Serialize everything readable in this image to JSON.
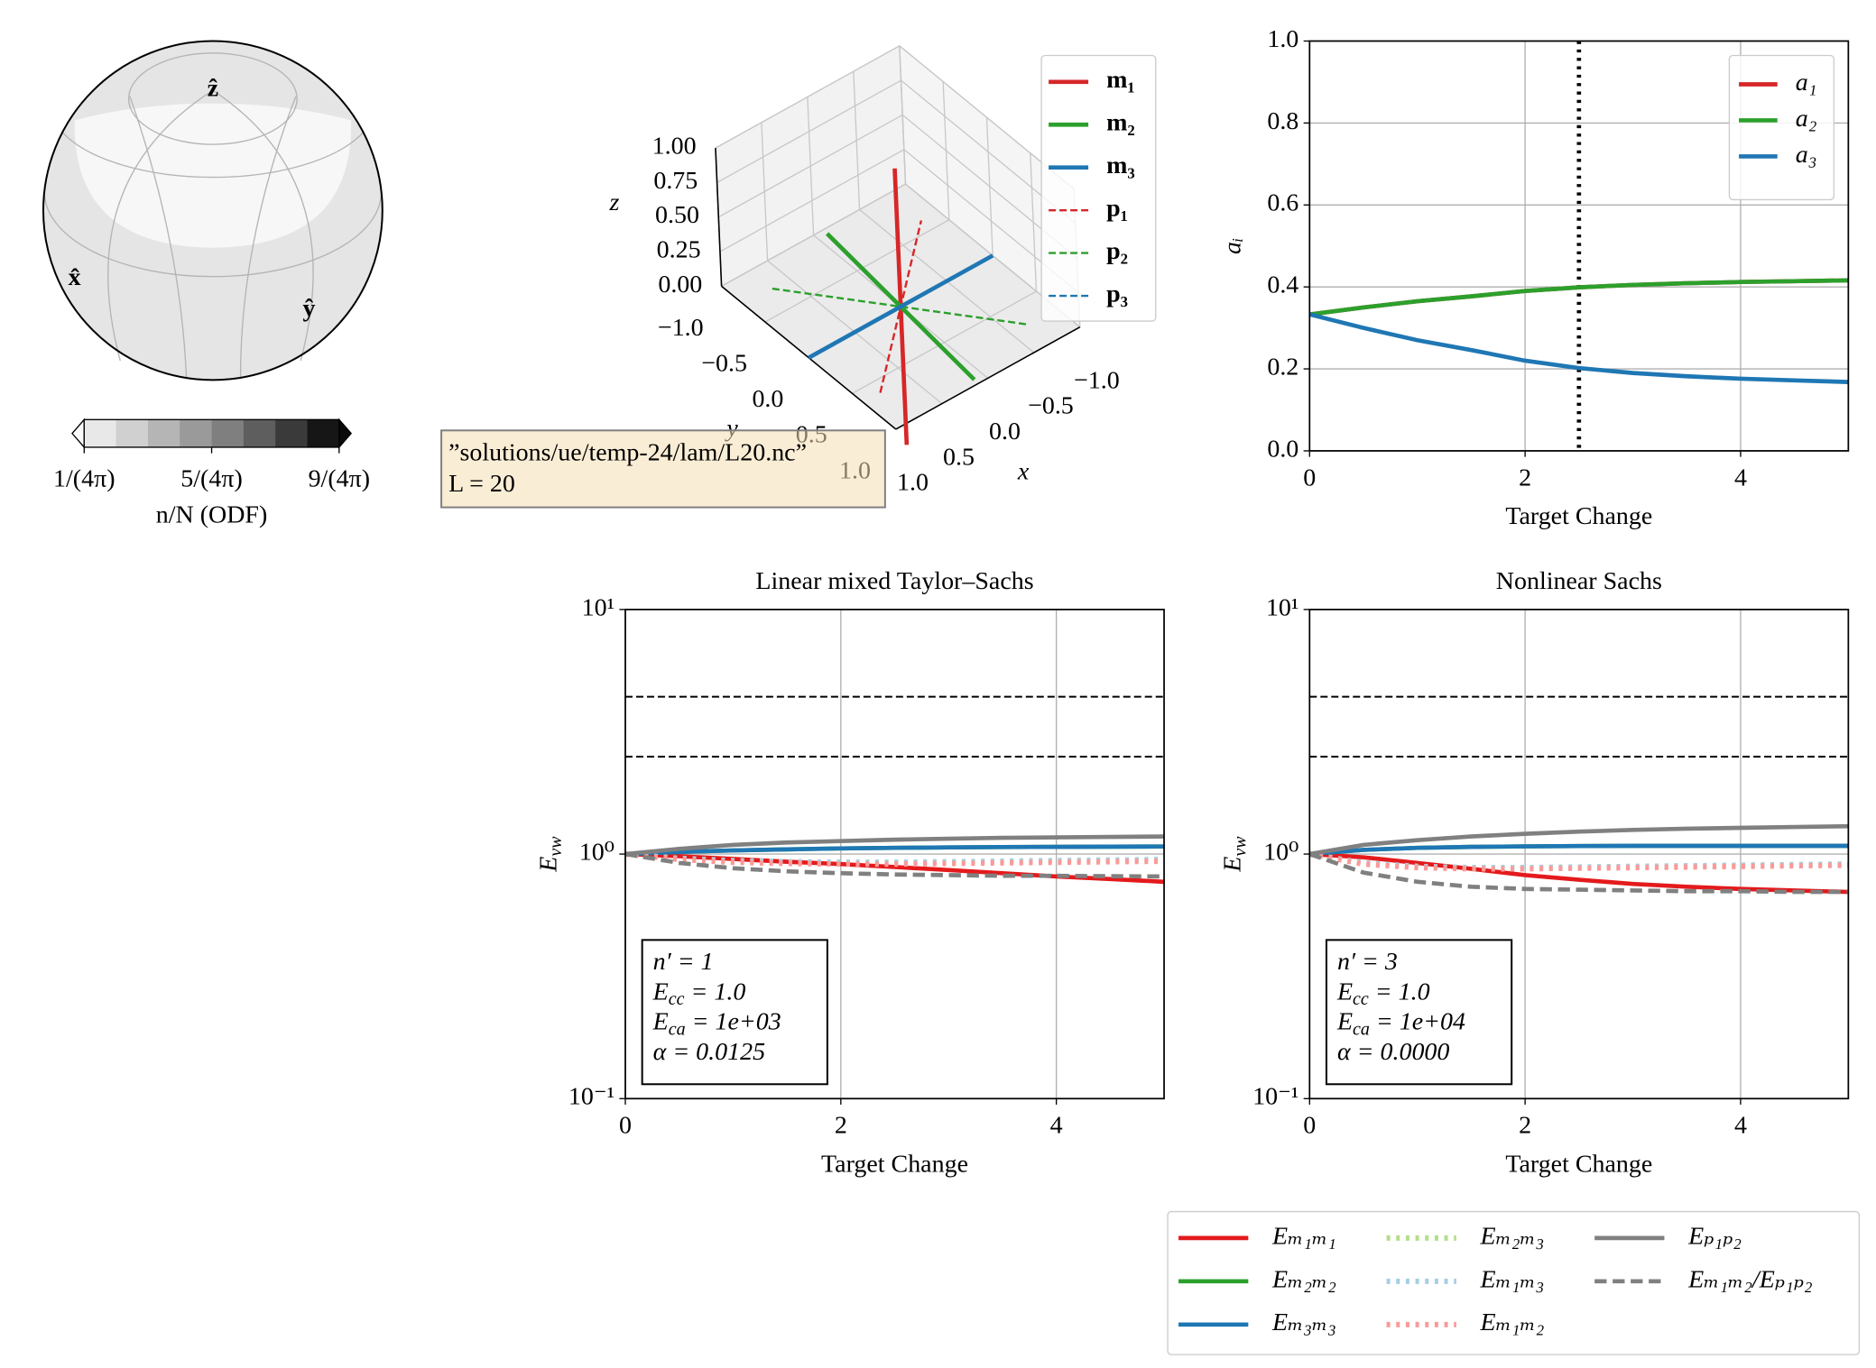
{
  "annotation": [
    "”solutions/ue/temp-24/lam/L20.nc”",
    "L = 20"
  ],
  "chart_data": [
    {
      "type": "sphere",
      "axis_labels": [
        "x̂",
        "ŷ",
        "ẑ"
      ],
      "axis_label_color": "#a01818",
      "colorbar": {
        "label": "n/N (ODF)",
        "lim": [
          0.0796,
          0.7162
        ],
        "ticks": [
          {
            "value": 0.0796,
            "label": "1/(4π)"
          },
          {
            "value": 0.3979,
            "label": "5/(4π)"
          },
          {
            "value": 0.7162,
            "label": "9/(4π)"
          }
        ],
        "colors": [
          "#e8e8e8",
          "#d0d0d0",
          "#b5b5b5",
          "#9a9a9a",
          "#7f7f7f",
          "#5e5e5e",
          "#3a3a3a",
          "#161616"
        ],
        "extend_colors": [
          "#fafafa",
          "#0a0a0a"
        ]
      }
    },
    {
      "type": "line3d",
      "xlabel": "x",
      "ylabel": "y",
      "zlabel": "z",
      "xlim": [
        -1,
        1
      ],
      "ylim": [
        -1,
        1
      ],
      "zlim": [
        0,
        1
      ],
      "xticks": [
        {
          "value": -1,
          "label": "−1.0"
        },
        {
          "value": -0.5,
          "label": "−0.5"
        },
        {
          "value": 0,
          "label": "0.0"
        },
        {
          "value": 0.5,
          "label": "0.5"
        },
        {
          "value": 1,
          "label": "1.0"
        }
      ],
      "yticks": [
        {
          "value": -1,
          "label": "−1.0"
        },
        {
          "value": -0.5,
          "label": "−0.5"
        },
        {
          "value": 0,
          "label": "0.0"
        },
        {
          "value": 0.5,
          "label": "0.5"
        },
        {
          "value": 1,
          "label": "1.0"
        }
      ],
      "zticks": [
        {
          "value": 0,
          "label": "0.00"
        },
        {
          "value": 0.25,
          "label": "0.25"
        },
        {
          "value": 0.5,
          "label": "0.50"
        },
        {
          "value": 0.75,
          "label": "0.75"
        },
        {
          "value": 1,
          "label": "1.00"
        }
      ],
      "legend": "upper right",
      "series": [
        {
          "name": "m₁",
          "color": "#d62728",
          "style": "solid",
          "vector": [
            0,
            0,
            1
          ]
        },
        {
          "name": "m₂",
          "color": "#2ca02c",
          "style": "solid",
          "vector": [
            0.1,
            0.95,
            0
          ]
        },
        {
          "name": "m₃",
          "color": "#1f77b4",
          "style": "solid",
          "vector": [
            1,
            0,
            0
          ]
        },
        {
          "name": "p₁",
          "color": "#d62728",
          "style": "dashed",
          "vector": [
            -0.15,
            0.12,
            0.63
          ]
        },
        {
          "name": "p₂",
          "color": "#2ca02c",
          "style": "dashed",
          "vector": [
            -0.69,
            0.745,
            0
          ]
        },
        {
          "name": "p₃",
          "color": "#1f77b4",
          "style": "dashed",
          "vector": [
            1,
            0,
            0
          ]
        }
      ]
    },
    {
      "type": "line",
      "xlabel": "Target Change",
      "ylabel": "aᵢ",
      "grid": true,
      "legend": "upper right",
      "x": [
        0,
        0.5,
        1,
        1.5,
        2,
        2.5,
        3,
        3.5,
        4,
        4.5,
        5
      ],
      "xlim": [
        0,
        5
      ],
      "xticks": [
        0,
        2,
        4
      ],
      "ylim": [
        0,
        1
      ],
      "yticks": [
        {
          "value": 0,
          "label": "0.0"
        },
        {
          "value": 0.2,
          "label": "0.2"
        },
        {
          "value": 0.4,
          "label": "0.4"
        },
        {
          "value": 0.6,
          "label": "0.6"
        },
        {
          "value": 0.8,
          "label": "0.8"
        },
        {
          "value": 1,
          "label": "1.0"
        }
      ],
      "vlines": [
        2.5
      ],
      "series": [
        {
          "name": "a₁",
          "color": "#d62728",
          "style": "solid",
          "values": [
            0.333,
            0.35,
            0.365,
            0.377,
            0.39,
            0.399,
            0.405,
            0.409,
            0.412,
            0.414,
            0.416
          ]
        },
        {
          "name": "a₂",
          "color": "#2ca02c",
          "style": "solid",
          "values": [
            0.333,
            0.35,
            0.365,
            0.377,
            0.39,
            0.399,
            0.405,
            0.409,
            0.412,
            0.414,
            0.416
          ]
        },
        {
          "name": "a₃",
          "color": "#1f77b4",
          "style": "solid",
          "values": [
            0.333,
            0.3,
            0.27,
            0.246,
            0.22,
            0.202,
            0.19,
            0.182,
            0.176,
            0.172,
            0.168
          ]
        }
      ]
    },
    {
      "type": "line",
      "title": "Linear mixed Taylor–Sachs",
      "xlabel": "Target Change",
      "ylabel": "E",
      "ylabel_sub": "vw",
      "yscale": "log",
      "grid": true,
      "x": [
        0,
        0.5,
        1,
        1.5,
        2,
        2.5,
        3,
        3.5,
        4,
        4.5,
        5
      ],
      "xlim": [
        0,
        5
      ],
      "xticks": [
        0,
        2,
        4
      ],
      "ylim": [
        0.1,
        10
      ],
      "yticks": [
        {
          "value": 0.1,
          "label": "10⁻¹"
        },
        {
          "value": 1,
          "label": "10⁰"
        },
        {
          "value": 10,
          "label": "10¹"
        }
      ],
      "hlines": [
        4.4,
        2.5
      ],
      "annotation": [
        [
          {
            "text": "n′ = 1"
          }
        ],
        [
          {
            "text": "E"
          },
          {
            "text": "cc",
            "sub": true
          },
          {
            "text": " = 1.0"
          }
        ],
        [
          {
            "text": "E"
          },
          {
            "text": "ca",
            "sub": true
          },
          {
            "text": " = 1e+03"
          }
        ],
        [
          {
            "text": "α = 0.0125"
          }
        ]
      ],
      "series": [
        {
          "name": "Eₘ₁ₘ₁",
          "color": "#e41a1c",
          "style": "solid",
          "values": [
            1,
            0.98,
            0.955,
            0.93,
            0.91,
            0.885,
            0.86,
            0.835,
            0.81,
            0.79,
            0.77
          ]
        },
        {
          "name": "Eₘ₂ₘ₂",
          "color": "#2ca02c",
          "style": "solid",
          "values": [
            1,
            1.02,
            1.035,
            1.045,
            1.055,
            1.06,
            1.065,
            1.068,
            1.07,
            1.072,
            1.074
          ]
        },
        {
          "name": "Eₘ₃ₘ₃",
          "color": "#1f77b4",
          "style": "solid",
          "values": [
            1,
            1.02,
            1.035,
            1.045,
            1.055,
            1.06,
            1.065,
            1.068,
            1.07,
            1.072,
            1.074
          ]
        },
        {
          "name": "Eₘ₂ₘ₃",
          "color": "#b2df8a",
          "style": "dotted",
          "values": [
            1,
            0.96,
            0.94,
            0.93,
            0.925,
            0.925,
            0.93,
            0.935,
            0.94,
            0.945,
            0.95
          ]
        },
        {
          "name": "Eₘ₁ₘ₃",
          "color": "#a6cee3",
          "style": "dotted",
          "values": [
            1,
            0.96,
            0.94,
            0.93,
            0.925,
            0.925,
            0.93,
            0.935,
            0.94,
            0.945,
            0.95
          ]
        },
        {
          "name": "Eₘ₁ₘ₂",
          "color": "#fb9a99",
          "style": "dotted",
          "values": [
            1,
            0.95,
            0.925,
            0.915,
            0.91,
            0.91,
            0.915,
            0.92,
            0.925,
            0.93,
            0.935
          ]
        },
        {
          "name": "Eₚ₁ₚ₂",
          "color": "#808080",
          "style": "solid",
          "values": [
            1,
            1.05,
            1.09,
            1.115,
            1.13,
            1.145,
            1.155,
            1.165,
            1.17,
            1.175,
            1.18
          ]
        },
        {
          "name": "Eₘ₁ₘ₂/Eₚ₁ₚ₂",
          "color": "#808080",
          "style": "dashed",
          "values": [
            1,
            0.92,
            0.875,
            0.85,
            0.835,
            0.825,
            0.82,
            0.815,
            0.815,
            0.812,
            0.81
          ]
        }
      ]
    },
    {
      "type": "line",
      "title": "Nonlinear Sachs",
      "xlabel": "Target Change",
      "ylabel": "E",
      "ylabel_sub": "vw",
      "yscale": "log",
      "grid": true,
      "x": [
        0,
        0.5,
        1,
        1.5,
        2,
        2.5,
        3,
        3.5,
        4,
        4.5,
        5
      ],
      "xlim": [
        0,
        5
      ],
      "xticks": [
        0,
        2,
        4
      ],
      "ylim": [
        0.1,
        10
      ],
      "yticks": [
        {
          "value": 0.1,
          "label": "10⁻¹"
        },
        {
          "value": 1,
          "label": "10⁰"
        },
        {
          "value": 10,
          "label": "10¹"
        }
      ],
      "hlines": [
        4.4,
        2.5
      ],
      "annotation": [
        [
          {
            "text": "n′ = 3"
          }
        ],
        [
          {
            "text": "E"
          },
          {
            "text": "cc",
            "sub": true
          },
          {
            "text": " = 1.0"
          }
        ],
        [
          {
            "text": "E"
          },
          {
            "text": "ca",
            "sub": true
          },
          {
            "text": " = 1e+04"
          }
        ],
        [
          {
            "text": "α = 0.0000"
          }
        ]
      ],
      "series": [
        {
          "color": "#e41a1c",
          "style": "solid",
          "values": [
            1,
            0.97,
            0.92,
            0.87,
            0.82,
            0.785,
            0.755,
            0.735,
            0.72,
            0.71,
            0.7
          ]
        },
        {
          "color": "#2ca02c",
          "style": "solid",
          "values": [
            1,
            1.04,
            1.06,
            1.07,
            1.075,
            1.078,
            1.08,
            1.08,
            1.08,
            1.08,
            1.08
          ]
        },
        {
          "color": "#1f77b4",
          "style": "solid",
          "values": [
            1,
            1.04,
            1.06,
            1.07,
            1.075,
            1.078,
            1.08,
            1.08,
            1.08,
            1.08,
            1.08
          ]
        },
        {
          "color": "#b2df8a",
          "style": "dotted",
          "values": [
            1,
            0.92,
            0.89,
            0.88,
            0.88,
            0.885,
            0.89,
            0.895,
            0.9,
            0.905,
            0.91
          ]
        },
        {
          "color": "#a6cee3",
          "style": "dotted",
          "values": [
            1,
            0.92,
            0.89,
            0.88,
            0.88,
            0.885,
            0.89,
            0.895,
            0.9,
            0.905,
            0.91
          ]
        },
        {
          "color": "#fb9a99",
          "style": "dotted",
          "values": [
            1,
            0.91,
            0.88,
            0.87,
            0.87,
            0.875,
            0.88,
            0.885,
            0.89,
            0.895,
            0.9
          ]
        },
        {
          "color": "#808080",
          "style": "solid",
          "values": [
            1,
            1.09,
            1.14,
            1.18,
            1.21,
            1.235,
            1.255,
            1.27,
            1.28,
            1.29,
            1.3
          ]
        },
        {
          "color": "#808080",
          "style": "dashed",
          "values": [
            1,
            0.84,
            0.77,
            0.735,
            0.72,
            0.715,
            0.71,
            0.705,
            0.705,
            0.7,
            0.7
          ]
        }
      ]
    }
  ]
}
